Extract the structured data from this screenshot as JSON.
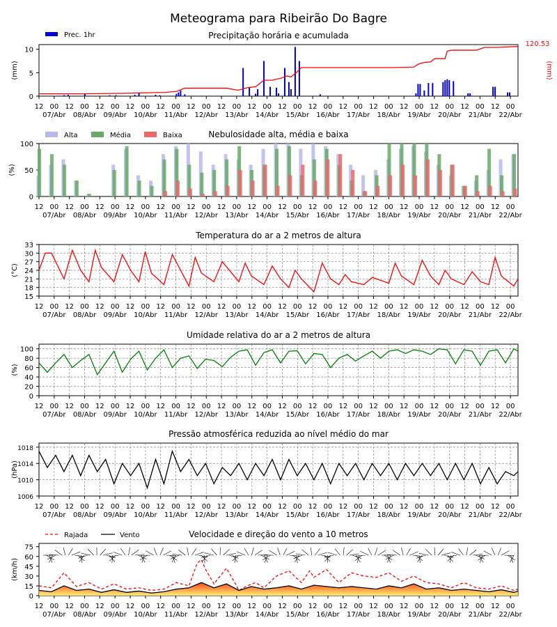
{
  "title": "Meteograma para Ribeirão Do Bagre",
  "x_ticks": [
    "12",
    "00",
    "12",
    "00",
    "12",
    "00",
    "12",
    "00",
    "12",
    "00",
    "12",
    "00",
    "12",
    "00",
    "12",
    "00",
    "12",
    "00",
    "12",
    "00",
    "12",
    "00",
    "12",
    "00",
    "12",
    "00",
    "12",
    "00",
    "12",
    "00",
    "12",
    "00"
  ],
  "day_labels": [
    "07/Abr",
    "08/Abr",
    "09/Abr",
    "10/Abr",
    "11/Abr",
    "12/Abr",
    "13/Abr",
    "14/Abr",
    "15/Abr",
    "16/Abr",
    "17/Abr",
    "18/Abr",
    "19/Abr",
    "20/Abr",
    "21/Abr",
    "22/Abr"
  ],
  "colors": {
    "precip": "#0000cc",
    "accum": "#ff0000",
    "cloud_high": "#b8b8f0",
    "cloud_mid": "#66aa66",
    "cloud_low": "#ee6666",
    "temp": "#ff0000",
    "rh": "#008000",
    "pressure": "#000000",
    "gust": "#ff0000",
    "wind": "#000000"
  },
  "chart_data": [
    {
      "type": "bar",
      "title": "Precipitação horária e acumulada",
      "ylabel": "(mm)",
      "ylabel_right": "(mm)",
      "right_annotation": "120.53",
      "ylim": [
        0,
        11
      ],
      "yticks": [
        0,
        5,
        10
      ],
      "legend": [
        "Prec. 1hr"
      ],
      "series": [
        {
          "name": "Prec. 1hr",
          "x": [
            12,
            14,
            22,
            34,
            37,
            46,
            48,
            56,
            58,
            66,
            67,
            68,
            70,
            98,
            101,
            104,
            105,
            108,
            111,
            114,
            115,
            118,
            120,
            121,
            123,
            125,
            135,
            181,
            182,
            183,
            185,
            187,
            189,
            194,
            195,
            196,
            197,
            199,
            206,
            207,
            218,
            219,
            225,
            226
          ],
          "values": [
            0.2,
            0.3,
            0.5,
            0.2,
            0.2,
            0.3,
            0.6,
            0.3,
            0.2,
            0.5,
            0.8,
            1.2,
            0.4,
            6.0,
            1.8,
            0.5,
            1.5,
            7.5,
            2.0,
            1.8,
            0.6,
            6.0,
            3.0,
            1.5,
            10.5,
            7.5,
            0.4,
            0.6,
            2.6,
            2.6,
            1.2,
            2.8,
            2.8,
            3.0,
            3.4,
            3.6,
            3.4,
            3.2,
            0.6,
            0.6,
            2.0,
            2.0,
            0.8,
            0.8
          ]
        },
        {
          "name": "Acumulada",
          "x": [
            0,
            20,
            40,
            60,
            66,
            70,
            90,
            95,
            96,
            100,
            104,
            108,
            112,
            116,
            119,
            121,
            124,
            126,
            170,
            180,
            182,
            185,
            188,
            190,
            195,
            196,
            198,
            210,
            214,
            220,
            230
          ],
          "values": [
            0.5,
            0.5,
            0.6,
            0.8,
            1.0,
            1.7,
            1.7,
            1.3,
            1.3,
            1.8,
            2.0,
            3.4,
            3.4,
            3.8,
            4.3,
            4.1,
            5.2,
            6.1,
            6.1,
            6.2,
            6.8,
            7.2,
            7.3,
            8.0,
            8.0,
            9.6,
            9.8,
            9.8,
            10.4,
            10.4,
            10.6
          ]
        }
      ]
    },
    {
      "type": "bar",
      "title": "Nebulosidade alta, média e baixa",
      "ylabel": "(%)",
      "ylim": [
        0,
        100
      ],
      "yticks": [
        0,
        50,
        100
      ],
      "legend": [
        "Alta",
        "Média",
        "Baixa"
      ],
      "series": [
        {
          "name": "Alta",
          "x": [
            0,
            6,
            12,
            18,
            24,
            30,
            36,
            42,
            48,
            54,
            60,
            66,
            72,
            78,
            84,
            90,
            96,
            102,
            108,
            114,
            120,
            126,
            132,
            138,
            144,
            150,
            156,
            162,
            168,
            174,
            180,
            186,
            192,
            198,
            204,
            210,
            216,
            222,
            228
          ],
          "values": [
            40,
            60,
            70,
            30,
            5,
            0,
            60,
            90,
            40,
            30,
            80,
            95,
            100,
            85,
            60,
            80,
            70,
            60,
            90,
            100,
            100,
            90,
            100,
            95,
            80,
            60,
            40,
            50,
            70,
            90,
            95,
            85,
            60,
            40,
            20,
            30,
            50,
            70,
            80
          ]
        },
        {
          "name": "Média",
          "x": [
            0,
            6,
            12,
            18,
            24,
            30,
            36,
            42,
            48,
            54,
            60,
            66,
            72,
            78,
            84,
            90,
            96,
            102,
            108,
            114,
            120,
            126,
            132,
            138,
            144,
            150,
            156,
            162,
            168,
            174,
            180,
            186,
            192,
            198,
            204,
            210,
            216,
            222,
            228
          ],
          "values": [
            90,
            80,
            60,
            30,
            5,
            0,
            50,
            95,
            30,
            20,
            70,
            90,
            60,
            45,
            50,
            70,
            95,
            50,
            60,
            90,
            95,
            40,
            70,
            90,
            60,
            30,
            10,
            40,
            100,
            100,
            100,
            100,
            80,
            60,
            20,
            40,
            90,
            40,
            80
          ]
        },
        {
          "name": "Baixa",
          "x": [
            0,
            6,
            12,
            18,
            24,
            30,
            36,
            42,
            48,
            54,
            60,
            66,
            72,
            78,
            84,
            90,
            96,
            102,
            108,
            114,
            120,
            126,
            132,
            138,
            144,
            150,
            156,
            162,
            168,
            174,
            180,
            186,
            192,
            198,
            204,
            210,
            216,
            222,
            228
          ],
          "values": [
            0,
            0,
            0,
            0,
            0,
            0,
            0,
            0,
            0,
            0,
            10,
            30,
            15,
            5,
            10,
            20,
            50,
            30,
            60,
            20,
            40,
            60,
            30,
            70,
            80,
            50,
            10,
            20,
            40,
            60,
            40,
            70,
            50,
            60,
            20,
            10,
            20,
            10,
            15
          ]
        }
      ]
    },
    {
      "type": "line",
      "title": "Temperatura do ar a 2 metros de altura",
      "ylabel": "(°C)",
      "ylim": [
        15,
        33
      ],
      "yticks": [
        15,
        18,
        21,
        24,
        27,
        30,
        33
      ],
      "series": [
        {
          "name": "Temperatura",
          "x": [
            0,
            3,
            6,
            12,
            16,
            20,
            24,
            27,
            30,
            36,
            40,
            44,
            48,
            51,
            54,
            60,
            64,
            68,
            72,
            75,
            78,
            84,
            88,
            92,
            96,
            99,
            102,
            108,
            112,
            116,
            120,
            123,
            126,
            132,
            136,
            140,
            144,
            147,
            150,
            156,
            160,
            164,
            168,
            171,
            174,
            180,
            184,
            188,
            192,
            195,
            198,
            204,
            208,
            212,
            216,
            219,
            222,
            228,
            230
          ],
          "values": [
            24,
            30,
            30,
            21,
            31,
            24,
            20,
            31,
            25,
            20,
            29.5,
            24,
            20,
            30.5,
            23,
            19,
            29.5,
            24,
            18.5,
            28.5,
            23,
            20,
            27,
            23.5,
            20,
            26.5,
            22,
            19,
            25.5,
            21,
            18,
            24,
            21,
            16.5,
            26.5,
            21,
            19,
            22.5,
            20,
            19,
            21.5,
            20.5,
            19.5,
            26.5,
            22,
            19,
            27.5,
            22,
            19,
            24,
            21,
            19,
            23.5,
            20,
            19,
            28.5,
            22,
            18.5,
            21
          ]
        }
      ]
    },
    {
      "type": "line",
      "title": "Umidade relativa do ar a 2 metros de altura",
      "ylabel": "(%)",
      "ylim": [
        0,
        110
      ],
      "yticks": [
        0,
        20,
        40,
        60,
        80,
        100
      ],
      "series": [
        {
          "name": "Umidade",
          "x": [
            0,
            4,
            8,
            12,
            16,
            20,
            24,
            28,
            32,
            36,
            40,
            44,
            48,
            52,
            56,
            60,
            64,
            68,
            72,
            76,
            80,
            84,
            88,
            92,
            96,
            100,
            104,
            108,
            112,
            116,
            120,
            124,
            128,
            132,
            136,
            140,
            144,
            148,
            152,
            156,
            160,
            164,
            168,
            172,
            176,
            180,
            184,
            188,
            192,
            196,
            200,
            204,
            208,
            212,
            216,
            220,
            224,
            228,
            230
          ],
          "values": [
            70,
            50,
            70,
            88,
            60,
            75,
            88,
            45,
            70,
            95,
            50,
            78,
            95,
            55,
            80,
            98,
            60,
            80,
            85,
            58,
            78,
            75,
            62,
            82,
            95,
            98,
            65,
            92,
            98,
            70,
            95,
            96,
            68,
            90,
            88,
            60,
            80,
            88,
            74,
            85,
            95,
            80,
            95,
            98,
            90,
            98,
            95,
            88,
            100,
            98,
            68,
            98,
            95,
            65,
            95,
            98,
            70,
            100,
            95
          ]
        }
      ]
    },
    {
      "type": "line",
      "title": "Pressão atmosférica reduzida ao nível médio do mar",
      "ylabel": "(hPa)",
      "ylim": [
        1006,
        1019
      ],
      "yticks": [
        1006,
        1010,
        1014,
        1018
      ],
      "series": [
        {
          "name": "Pressão",
          "x": [
            0,
            4,
            8,
            12,
            16,
            20,
            24,
            28,
            32,
            36,
            40,
            44,
            48,
            52,
            56,
            60,
            64,
            68,
            72,
            76,
            80,
            84,
            88,
            92,
            96,
            100,
            104,
            108,
            112,
            116,
            120,
            124,
            128,
            132,
            136,
            140,
            144,
            148,
            152,
            156,
            160,
            164,
            168,
            172,
            176,
            180,
            184,
            188,
            192,
            196,
            200,
            204,
            208,
            212,
            216,
            220,
            224,
            228,
            230
          ],
          "values": [
            1017,
            1013,
            1016,
            1012,
            1016,
            1011,
            1016,
            1012,
            1015,
            1009,
            1014,
            1011,
            1014,
            1008,
            1015,
            1009,
            1017,
            1012,
            1015,
            1011,
            1014,
            1009,
            1013,
            1011,
            1014,
            1010,
            1014,
            1011,
            1015,
            1010,
            1015,
            1011,
            1014,
            1010,
            1014,
            1009,
            1014,
            1011,
            1014,
            1010,
            1014,
            1011,
            1014,
            1010,
            1014,
            1011,
            1014,
            1011,
            1014,
            1010,
            1014,
            1010,
            1014,
            1009,
            1013,
            1009,
            1012,
            1011,
            1012
          ]
        }
      ]
    },
    {
      "type": "line",
      "title": "Velocidade e direção do vento a 10 metros",
      "ylabel": "(km/h)",
      "ylim": [
        0,
        80
      ],
      "yticks": [
        0,
        15,
        30,
        45,
        60,
        75
      ],
      "legend": [
        "Rajada",
        "Vento"
      ],
      "series": [
        {
          "name": "Rajada",
          "x": [
            0,
            6,
            12,
            18,
            24,
            30,
            36,
            42,
            48,
            54,
            60,
            66,
            72,
            76,
            78,
            80,
            84,
            90,
            94,
            96,
            100,
            104,
            108,
            114,
            120,
            126,
            130,
            132,
            138,
            144,
            148,
            150,
            156,
            162,
            168,
            174,
            180,
            186,
            192,
            198,
            204,
            210,
            216,
            222,
            228,
            230
          ],
          "values": [
            15,
            12,
            35,
            14,
            20,
            10,
            18,
            10,
            12,
            8,
            10,
            20,
            15,
            50,
            55,
            40,
            18,
            42,
            20,
            8,
            15,
            20,
            12,
            30,
            38,
            20,
            38,
            28,
            40,
            20,
            30,
            35,
            30,
            28,
            35,
            22,
            30,
            20,
            18,
            12,
            20,
            12,
            10,
            15,
            8,
            10
          ]
        },
        {
          "name": "Vento",
          "x": [
            0,
            6,
            12,
            18,
            24,
            30,
            36,
            42,
            48,
            54,
            60,
            66,
            72,
            78,
            84,
            90,
            96,
            102,
            108,
            114,
            120,
            126,
            132,
            138,
            144,
            150,
            156,
            162,
            168,
            174,
            180,
            186,
            192,
            198,
            204,
            210,
            216,
            222,
            228,
            230
          ],
          "values": [
            8,
            6,
            15,
            8,
            10,
            5,
            9,
            5,
            7,
            4,
            6,
            10,
            12,
            20,
            12,
            18,
            8,
            14,
            10,
            12,
            15,
            10,
            16,
            14,
            12,
            14,
            12,
            10,
            15,
            12,
            18,
            10,
            12,
            8,
            10,
            8,
            6,
            9,
            5,
            7
          ]
        }
      ]
    }
  ]
}
